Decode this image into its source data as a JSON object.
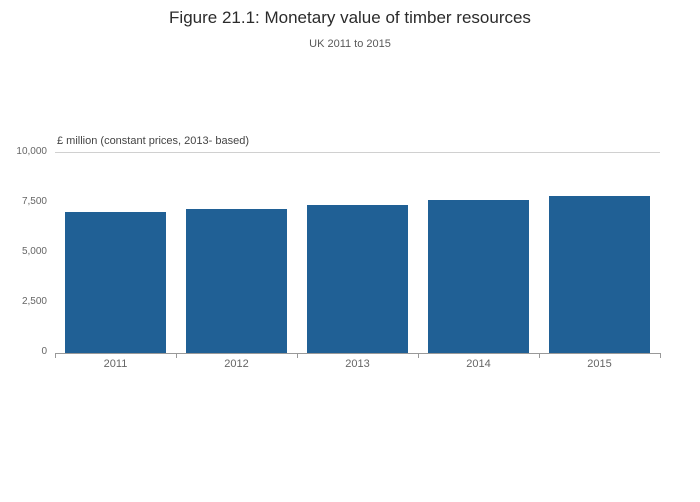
{
  "chart_data": {
    "type": "bar",
    "title": "Figure 21.1: Monetary value of timber resources",
    "subtitle": "UK 2011 to 2015",
    "ylabel": "£ million (constant prices, 2013- based)",
    "xlabel": "",
    "categories": [
      "2011",
      "2012",
      "2013",
      "2014",
      "2015"
    ],
    "values": [
      7050,
      7200,
      7400,
      7650,
      7850
    ],
    "ylim": [
      0,
      10000
    ],
    "yticks": [
      {
        "value": 0,
        "label": "0"
      },
      {
        "value": 2500,
        "label": "2,500"
      },
      {
        "value": 5000,
        "label": "5,000"
      },
      {
        "value": 7500,
        "label": "7,500"
      },
      {
        "value": 10000,
        "label": "10,000"
      }
    ],
    "bar_color": "#206095",
    "legend": "none",
    "grid": "top gridline and baseline only"
  }
}
